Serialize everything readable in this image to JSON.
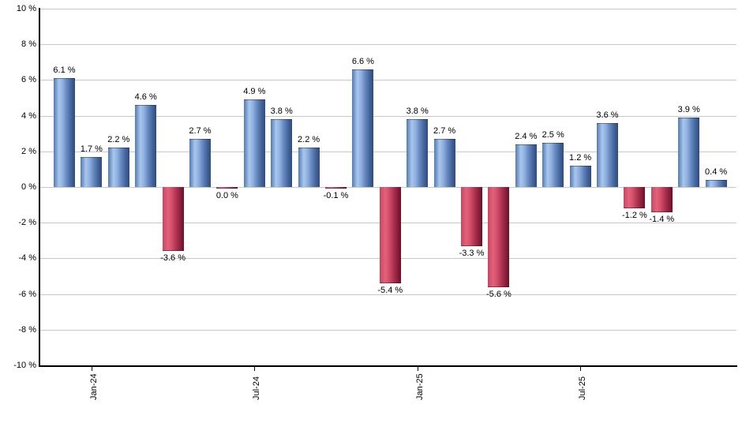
{
  "chart_data": {
    "type": "bar",
    "unit": "%",
    "ylim": [
      -10,
      10
    ],
    "grid": true,
    "y_ticks": [
      10,
      8,
      6,
      4,
      2,
      0,
      -2,
      -4,
      -6,
      -8,
      -10
    ],
    "y_tick_labels": [
      "10 %",
      "8 %",
      "6 %",
      "4 %",
      "2 %",
      "0 %",
      "-2 %",
      "-4 %",
      "-6 %",
      "-8 %",
      "-10 %"
    ],
    "x_tick_labels": [
      {
        "bar_index": 1,
        "label": "Jan-24"
      },
      {
        "bar_index": 7,
        "label": "Jul-24"
      },
      {
        "bar_index": 13,
        "label": "Jan-25"
      },
      {
        "bar_index": 19,
        "label": "Jul-25"
      }
    ],
    "bars": [
      {
        "value": 6.1,
        "label": "6.1 %",
        "color": "blue"
      },
      {
        "value": 1.7,
        "label": "1.7 %",
        "color": "blue"
      },
      {
        "value": 2.2,
        "label": "2.2 %",
        "color": "blue"
      },
      {
        "value": 4.6,
        "label": "4.6 %",
        "color": "blue"
      },
      {
        "value": -3.6,
        "label": "-3.6 %",
        "color": "red"
      },
      {
        "value": 2.7,
        "label": "2.7 %",
        "color": "blue"
      },
      {
        "value": 0.0,
        "label": "0.0 %",
        "color": "red"
      },
      {
        "value": 4.9,
        "label": "4.9 %",
        "color": "blue"
      },
      {
        "value": 3.8,
        "label": "3.8 %",
        "color": "blue"
      },
      {
        "value": 2.2,
        "label": "2.2 %",
        "color": "blue"
      },
      {
        "value": -0.1,
        "label": "-0.1 %",
        "color": "red"
      },
      {
        "value": 6.6,
        "label": "6.6 %",
        "color": "blue"
      },
      {
        "value": -5.4,
        "label": "-5.4 %",
        "color": "red"
      },
      {
        "value": 3.8,
        "label": "3.8 %",
        "color": "blue"
      },
      {
        "value": 2.7,
        "label": "2.7 %",
        "color": "blue"
      },
      {
        "value": -3.3,
        "label": "-3.3 %",
        "color": "red"
      },
      {
        "value": -5.6,
        "label": "-5.6 %",
        "color": "red"
      },
      {
        "value": 2.4,
        "label": "2.4 %",
        "color": "blue"
      },
      {
        "value": 2.5,
        "label": "2.5 %",
        "color": "blue"
      },
      {
        "value": 1.2,
        "label": "1.2 %",
        "color": "blue"
      },
      {
        "value": 3.6,
        "label": "3.6 %",
        "color": "blue"
      },
      {
        "value": -1.2,
        "label": "-1.2 %",
        "color": "red"
      },
      {
        "value": -1.4,
        "label": "-1.4 %",
        "color": "red"
      },
      {
        "value": 3.9,
        "label": "3.9 %",
        "color": "blue"
      },
      {
        "value": 0.4,
        "label": "0.4 %",
        "color": "blue"
      }
    ],
    "colors": {
      "positive_bar": "#6f92c8",
      "negative_bar": "#c23b58",
      "gridline": "#c8c8c8",
      "axis": "#000000",
      "label_text": "#000000"
    }
  }
}
